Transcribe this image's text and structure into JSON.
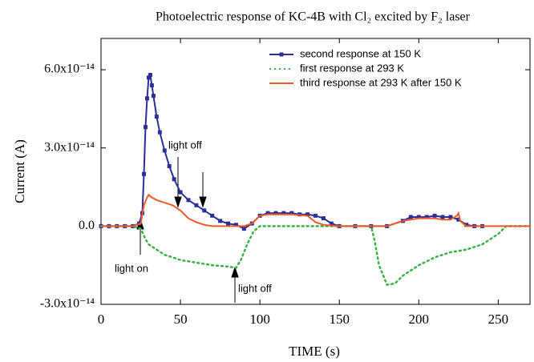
{
  "chart_data": {
    "type": "line",
    "title": "Photoelectric response of KC-4B with Cl₂ excited by F₂ laser",
    "x_label": "TIME (s)",
    "y_label": "Current (A)",
    "xlim": [
      0,
      270
    ],
    "xticks": [
      0,
      50,
      100,
      150,
      200,
      250
    ],
    "ylim": [
      -3e-14,
      7.2e-14
    ],
    "yticks": [
      {
        "value": -3e-14,
        "label": "-3.0x10⁻¹⁴"
      },
      {
        "value": 0,
        "label": "0.0"
      },
      {
        "value": 3e-14,
        "label": "3.0x10⁻¹⁴"
      },
      {
        "value": 6e-14,
        "label": "6.0x10⁻¹⁴"
      }
    ],
    "legend": "upper right",
    "annotations": [
      "light on",
      "light off",
      "light off"
    ],
    "series": [
      {
        "name": "second response at 150 K",
        "color": "#2b2f9a",
        "style": "solid",
        "marker": "square",
        "x": [
          0,
          5,
          10,
          15,
          20,
          24,
          26,
          27,
          28,
          29,
          30,
          31,
          32,
          33,
          35,
          37,
          40,
          43,
          46,
          50,
          55,
          60,
          65,
          70,
          75,
          80,
          85,
          90,
          95,
          100,
          105,
          110,
          115,
          120,
          125,
          130,
          135,
          140,
          145,
          150,
          160,
          170,
          180,
          190,
          195,
          200,
          205,
          210,
          215,
          220,
          225,
          230,
          235,
          240
        ],
        "values": [
          0,
          0,
          0,
          0,
          0,
          1e-15,
          5e-15,
          2e-14,
          3.8e-14,
          4.9e-14,
          5.7e-14,
          5.8e-14,
          5.4e-14,
          5e-14,
          4.2e-14,
          3.6e-14,
          2.9e-14,
          2.3e-14,
          1.8e-14,
          1.3e-14,
          1e-14,
          8e-15,
          6e-15,
          4e-15,
          2e-15,
          1e-15,
          5e-16,
          -1e-15,
          1e-15,
          4e-15,
          5e-15,
          5e-15,
          5e-15,
          5e-15,
          4.5e-15,
          4.5e-15,
          4e-15,
          3e-15,
          1e-15,
          0,
          0,
          0,
          0,
          2e-15,
          3.5e-15,
          3.5e-15,
          3.5e-15,
          4e-15,
          3.5e-15,
          3.5e-15,
          2.5e-15,
          5e-16,
          0,
          0
        ]
      },
      {
        "name": "first response at 293 K",
        "color": "#3cb34a",
        "style": "dotted",
        "marker": "none",
        "x": [
          0,
          10,
          20,
          25,
          28,
          30,
          35,
          40,
          50,
          60,
          70,
          80,
          85,
          88,
          92,
          96,
          100,
          120,
          140,
          160,
          170,
          172,
          175,
          180,
          185,
          190,
          200,
          210,
          220,
          230,
          240,
          250,
          255,
          260,
          265,
          270
        ],
        "values": [
          0,
          0,
          0,
          -1e-15,
          -5e-15,
          -7e-15,
          -9e-15,
          -1.1e-14,
          -1.3e-14,
          -1.4e-14,
          -1.5e-14,
          -1.55e-14,
          -1.6e-14,
          -1.3e-14,
          -7e-15,
          -2e-15,
          0,
          0,
          0,
          0,
          0,
          -5e-15,
          -1.5e-14,
          -2.25e-14,
          -2.2e-14,
          -1.9e-14,
          -1.5e-14,
          -1.2e-14,
          -1e-14,
          -9e-15,
          -7e-15,
          -3e-15,
          0,
          0,
          0,
          0
        ]
      },
      {
        "name": "third response at 293 K after 150 K",
        "color": "#f05a28",
        "style": "solid",
        "marker": "none",
        "x": [
          0,
          10,
          20,
          25,
          27,
          29,
          30,
          32,
          35,
          40,
          45,
          50,
          55,
          60,
          65,
          70,
          80,
          90,
          95,
          100,
          105,
          110,
          120,
          130,
          135,
          140,
          150,
          160,
          170,
          175,
          180,
          190,
          200,
          210,
          215,
          220,
          224,
          225,
          226,
          230,
          240,
          250,
          270
        ],
        "values": [
          0,
          0,
          0,
          1e-15,
          8e-15,
          1.1e-14,
          1.2e-14,
          1.1e-14,
          1e-14,
          9e-15,
          8e-15,
          6e-15,
          3e-15,
          1.5e-15,
          5e-16,
          0,
          0,
          0,
          1e-15,
          4e-15,
          4.5e-15,
          4.5e-15,
          4.5e-15,
          4e-15,
          1.5e-15,
          5e-16,
          0,
          0,
          0,
          0,
          0,
          2e-15,
          3e-15,
          3e-15,
          2.5e-15,
          2.5e-15,
          4e-15,
          5e-15,
          2e-15,
          0,
          0,
          0,
          0
        ]
      }
    ]
  }
}
